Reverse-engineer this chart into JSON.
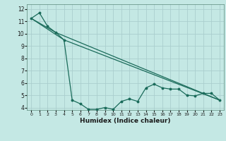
{
  "xlabel": "Humidex (Indice chaleur)",
  "background_color": "#c4e8e4",
  "grid_color": "#aacece",
  "line_color": "#1a6b5a",
  "xlim": [
    -0.5,
    23.5
  ],
  "ylim": [
    3.8,
    12.4
  ],
  "yticks": [
    4,
    5,
    6,
    7,
    8,
    9,
    10,
    11,
    12
  ],
  "xticks": [
    0,
    1,
    2,
    3,
    4,
    5,
    6,
    7,
    8,
    9,
    10,
    11,
    12,
    13,
    14,
    15,
    16,
    17,
    18,
    19,
    20,
    21,
    22,
    23
  ],
  "series_main": {
    "x": [
      0,
      1,
      2,
      3,
      4,
      5,
      6,
      7,
      8,
      9,
      10,
      11,
      12,
      13,
      14,
      15,
      16,
      17,
      18,
      19,
      20,
      21,
      22,
      23
    ],
    "y": [
      11.25,
      11.7,
      10.6,
      10.1,
      9.5,
      4.6,
      4.3,
      3.85,
      3.85,
      4.0,
      3.85,
      4.5,
      4.7,
      4.5,
      5.6,
      5.9,
      5.6,
      5.5,
      5.5,
      5.0,
      4.95,
      5.15,
      5.15,
      4.6
    ]
  },
  "series_line1": {
    "x": [
      0,
      3,
      23
    ],
    "y": [
      11.25,
      10.1,
      4.6
    ]
  },
  "series_line2": {
    "x": [
      0,
      4,
      23
    ],
    "y": [
      11.25,
      9.5,
      4.6
    ]
  }
}
